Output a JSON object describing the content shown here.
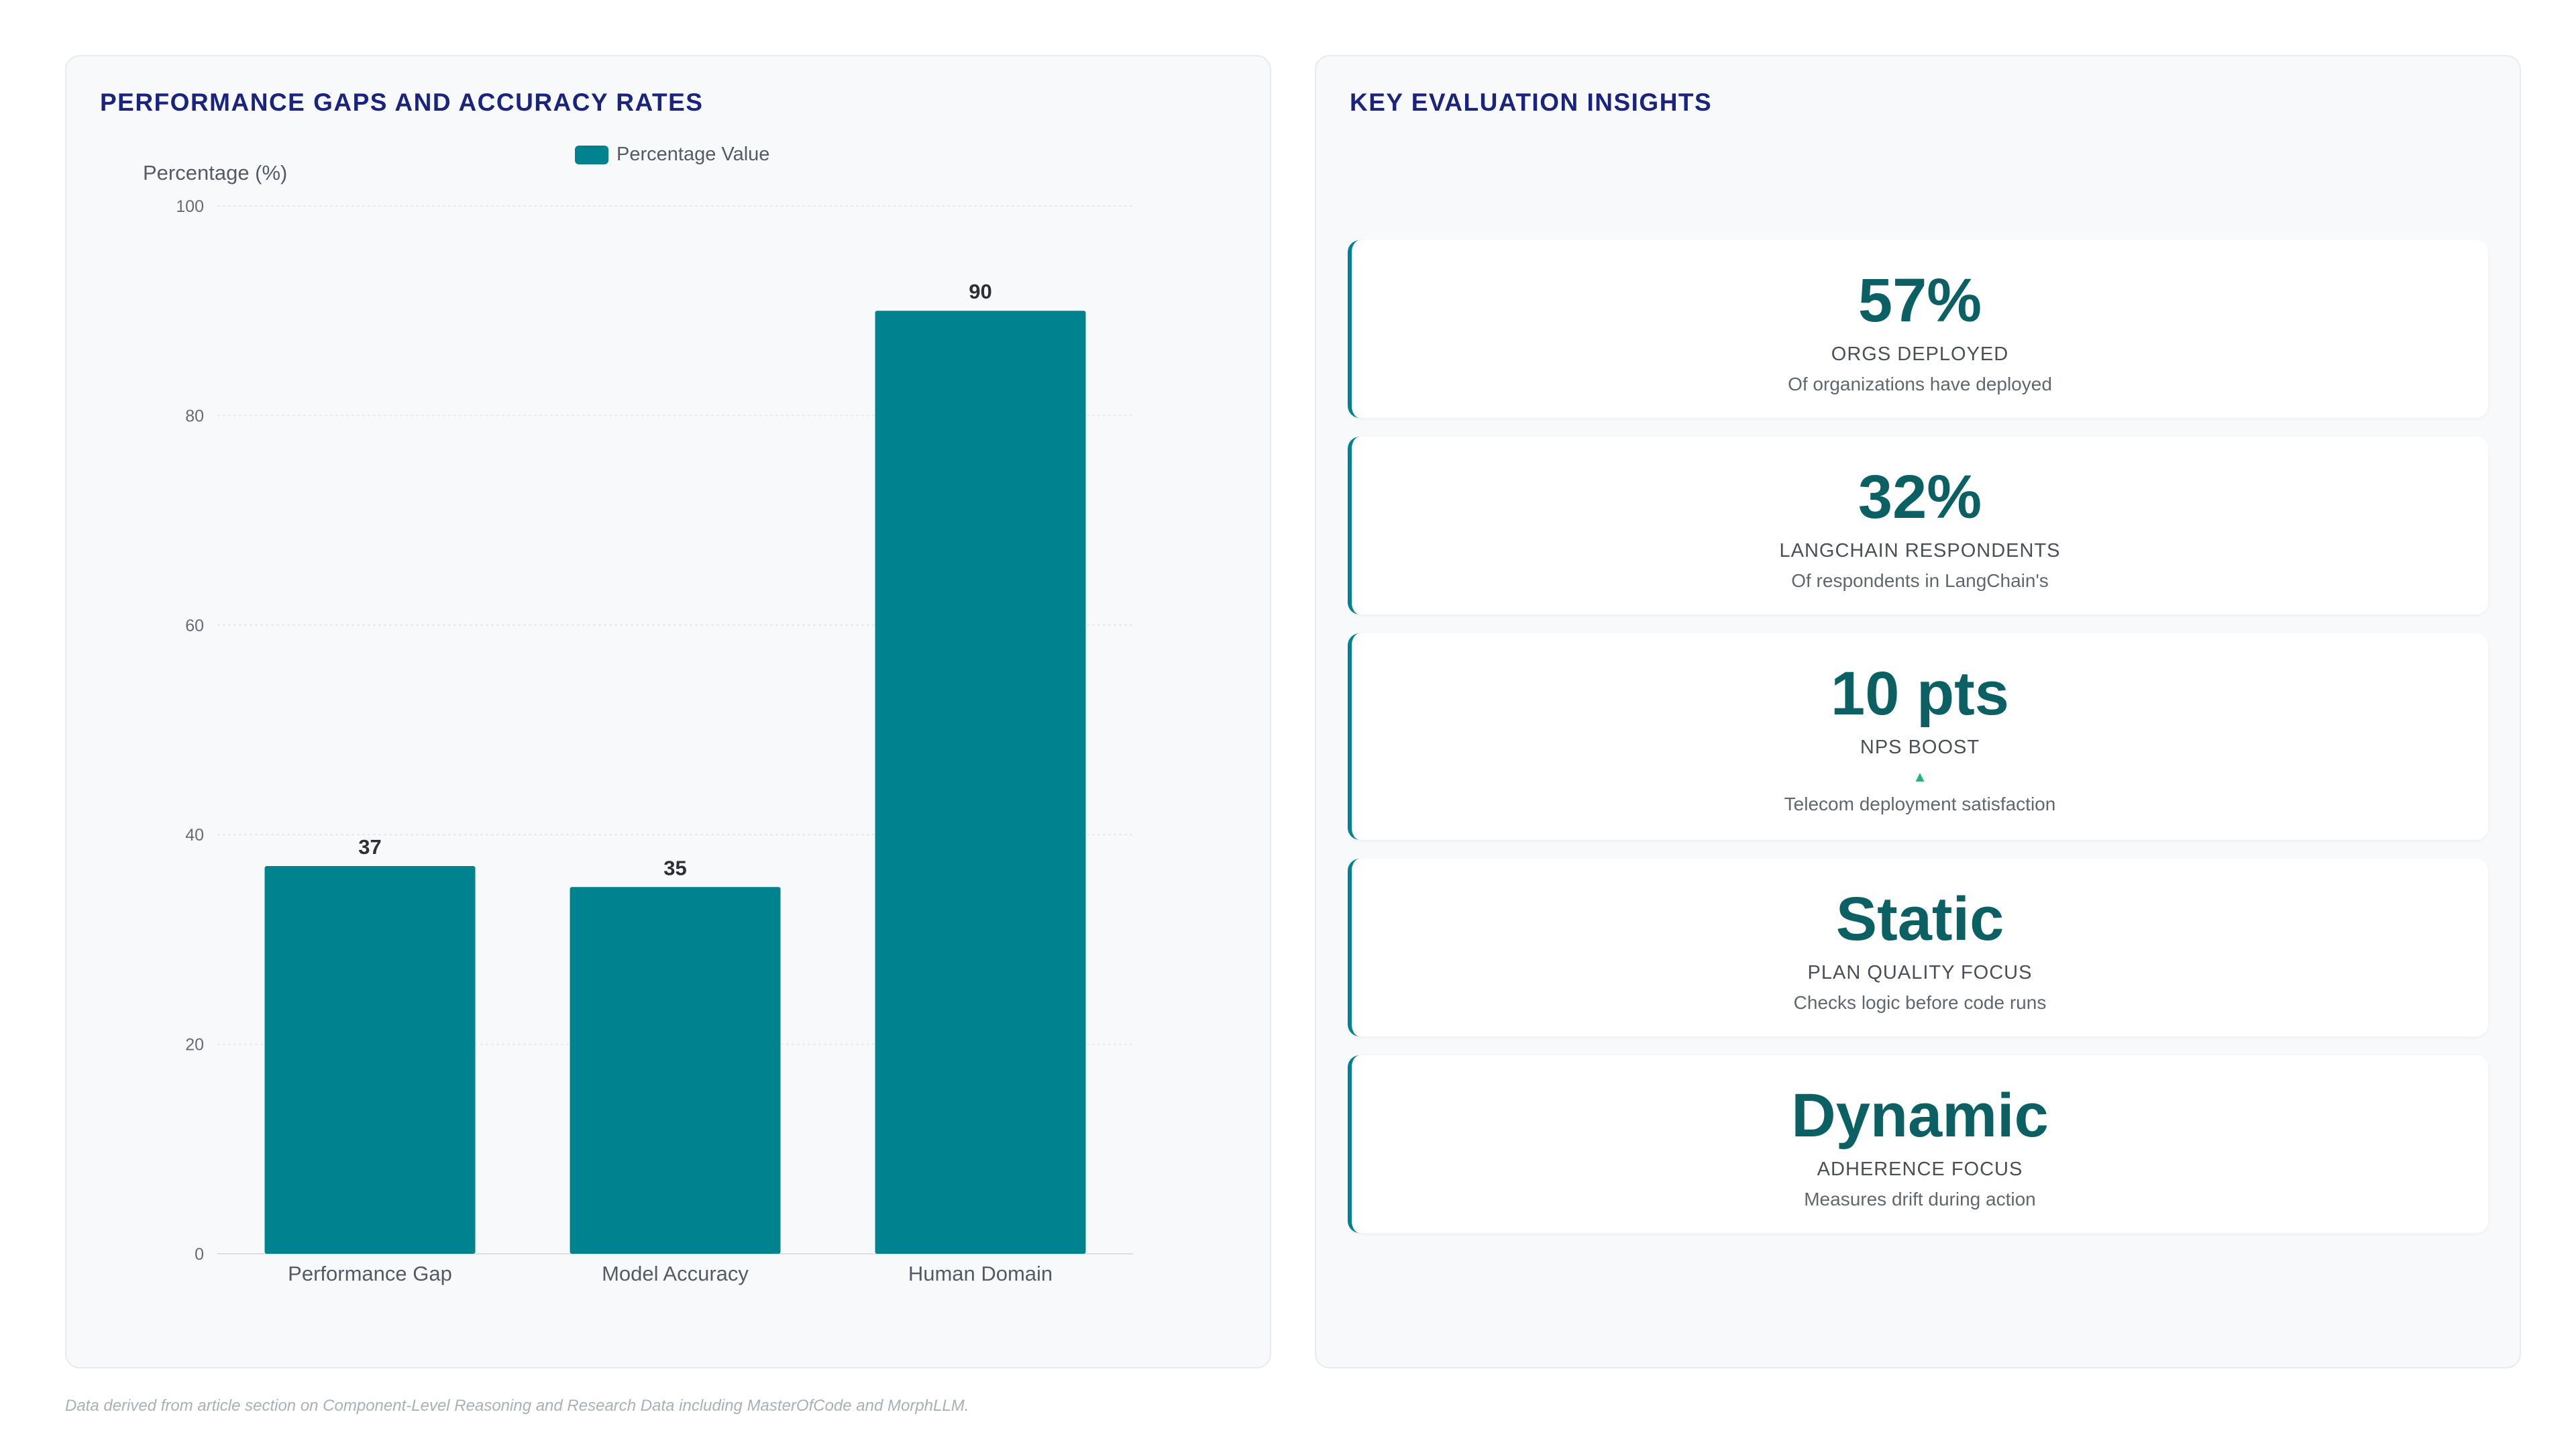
{
  "left_panel": {
    "title": "PERFORMANCE GAPS AND ACCURACY RATES"
  },
  "chart_data": {
    "type": "bar",
    "categories": [
      "Performance Gap",
      "Model Accuracy",
      "Human Domain"
    ],
    "series": [
      {
        "name": "Percentage Value",
        "values": [
          37,
          35,
          90
        ]
      }
    ],
    "ylabel": "Percentage (%)",
    "ylim": [
      0,
      100
    ],
    "yticks": [
      0,
      20,
      40,
      60,
      80,
      100
    ],
    "grid": true,
    "legend": "top-center",
    "bar_color": "#00838f"
  },
  "right_panel": {
    "title": "KEY EVALUATION INSIGHTS",
    "cards": [
      {
        "value": "57%",
        "label": "ORGS DEPLOYED",
        "description": "Of organizations have deployed"
      },
      {
        "value": "32%",
        "label": "LANGCHAIN RESPONDENTS",
        "description": "Of respondents in LangChain's"
      },
      {
        "value": "10 pts",
        "label": "NPS BOOST",
        "indicator": "▲",
        "description": "Telecom deployment satisfaction"
      },
      {
        "value": "Static",
        "label": "PLAN QUALITY FOCUS",
        "description": "Checks logic before code runs"
      },
      {
        "value": "Dynamic",
        "label": "ADHERENCE FOCUS",
        "description": "Measures drift during action"
      }
    ]
  },
  "footnote": "Data derived from article section on Component-Level Reasoning and Research Data including MasterOfCode and MorphLLM.",
  "colors": {
    "accent": "#00838f",
    "title": "#1a237e",
    "value_text": "#0a6062",
    "indicator": "#26b37a"
  }
}
